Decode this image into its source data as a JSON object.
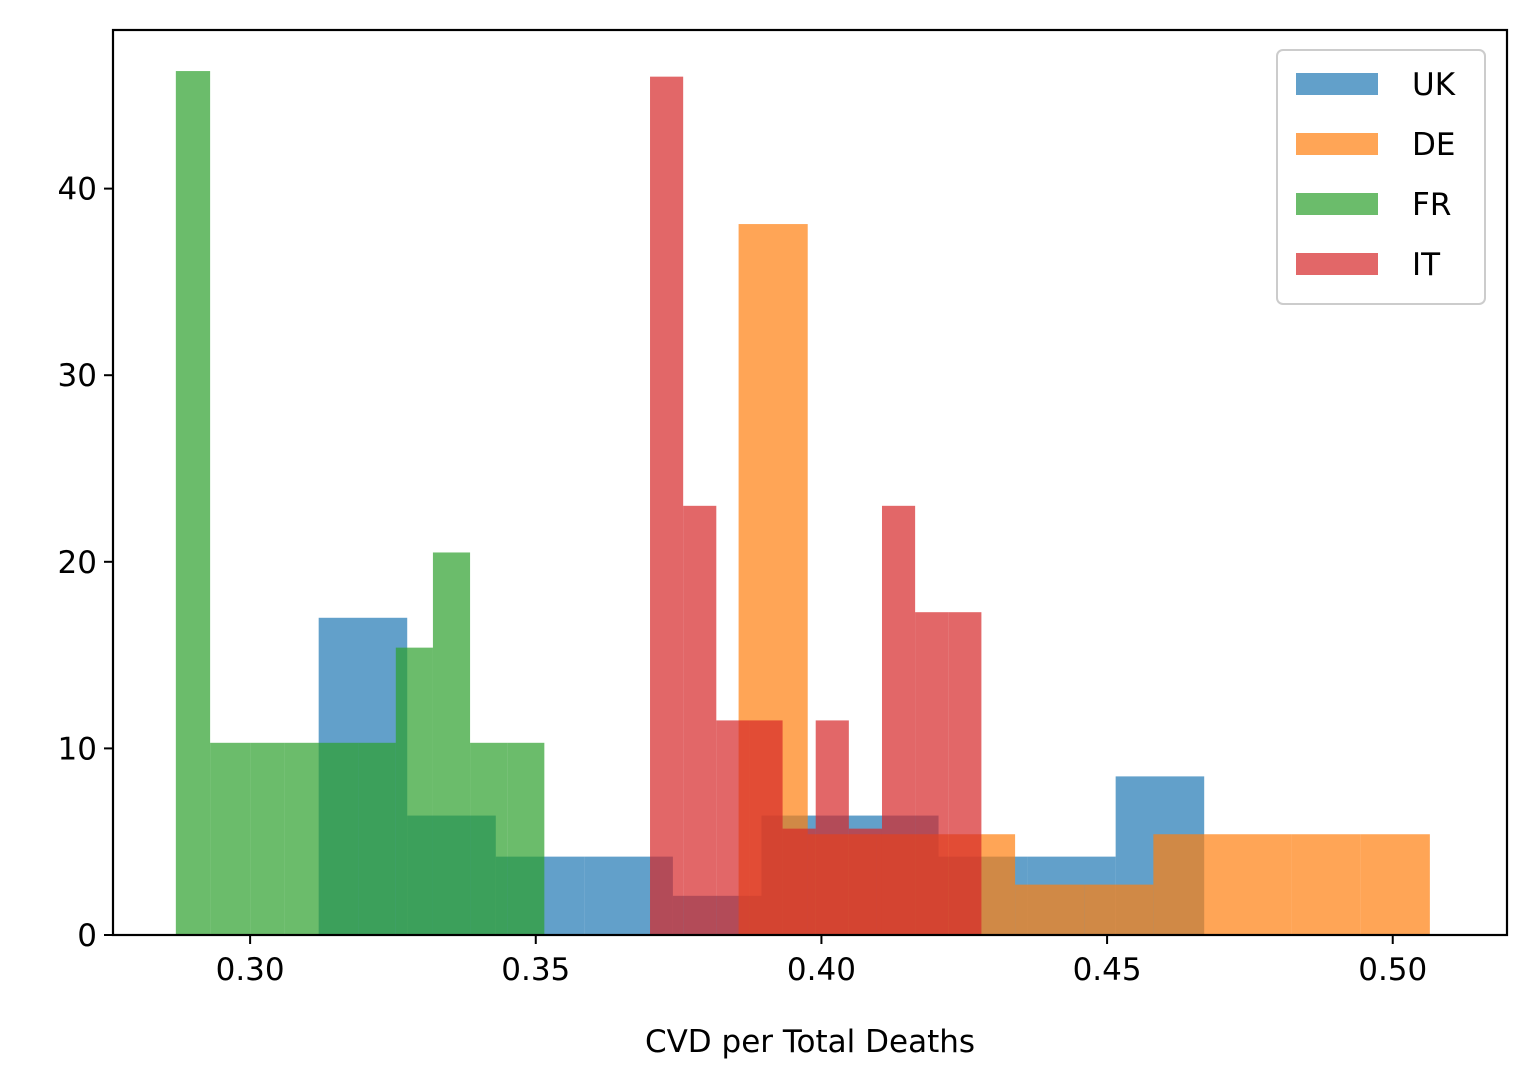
{
  "chart_data": {
    "type": "bar",
    "subtype": "overlapping-histogram",
    "title": "",
    "xlabel": "CVD per Total Deaths",
    "ylabel": "",
    "xlim": [
      0.276,
      0.52
    ],
    "ylim": [
      0,
      48.5
    ],
    "xticks": [
      {
        "value": 0.3,
        "label": "0.30"
      },
      {
        "value": 0.35,
        "label": "0.35"
      },
      {
        "value": 0.4,
        "label": "0.40"
      },
      {
        "value": 0.45,
        "label": "0.45"
      },
      {
        "value": 0.5,
        "label": "0.50"
      }
    ],
    "yticks": [
      {
        "value": 0,
        "label": "0"
      },
      {
        "value": 10,
        "label": "10"
      },
      {
        "value": 20,
        "label": "20"
      },
      {
        "value": 30,
        "label": "30"
      },
      {
        "value": 40,
        "label": "40"
      }
    ],
    "grid": false,
    "legend_position": "top-right",
    "opacity": 0.7,
    "series": [
      {
        "name": "UK",
        "color": "#1f77b4",
        "bins": [
          {
            "x0": 0.312,
            "x1": 0.3275,
            "value": 17.0
          },
          {
            "x0": 0.3275,
            "x1": 0.343,
            "value": 6.4
          },
          {
            "x0": 0.343,
            "x1": 0.3585,
            "value": 4.2
          },
          {
            "x0": 0.3585,
            "x1": 0.374,
            "value": 4.2
          },
          {
            "x0": 0.374,
            "x1": 0.3895,
            "value": 2.1
          },
          {
            "x0": 0.3895,
            "x1": 0.405,
            "value": 6.4
          },
          {
            "x0": 0.405,
            "x1": 0.4205,
            "value": 6.4
          },
          {
            "x0": 0.4205,
            "x1": 0.436,
            "value": 4.2
          },
          {
            "x0": 0.436,
            "x1": 0.4515,
            "value": 4.2
          },
          {
            "x0": 0.4515,
            "x1": 0.467,
            "value": 8.5
          }
        ]
      },
      {
        "name": "DE",
        "color": "#ff7f0e",
        "bins": [
          {
            "x0": 0.3855,
            "x1": 0.3976,
            "value": 38.1
          },
          {
            "x0": 0.3976,
            "x1": 0.4097,
            "value": 5.4
          },
          {
            "x0": 0.4097,
            "x1": 0.4218,
            "value": 5.4
          },
          {
            "x0": 0.4218,
            "x1": 0.4339,
            "value": 5.4
          },
          {
            "x0": 0.4339,
            "x1": 0.446,
            "value": 2.7
          },
          {
            "x0": 0.446,
            "x1": 0.4581,
            "value": 2.7
          },
          {
            "x0": 0.4581,
            "x1": 0.4702,
            "value": 5.4
          },
          {
            "x0": 0.4702,
            "x1": 0.4823,
            "value": 5.4
          },
          {
            "x0": 0.4823,
            "x1": 0.4944,
            "value": 5.4
          },
          {
            "x0": 0.4944,
            "x1": 0.5065,
            "value": 5.4
          }
        ]
      },
      {
        "name": "FR",
        "color": "#2ca02c",
        "bins": [
          {
            "x0": 0.287,
            "x1": 0.293,
            "value": 46.3
          },
          {
            "x0": 0.293,
            "x1": 0.3,
            "value": 10.3
          },
          {
            "x0": 0.3,
            "x1": 0.306,
            "value": 10.3
          },
          {
            "x0": 0.306,
            "x1": 0.3125,
            "value": 10.3
          },
          {
            "x0": 0.3125,
            "x1": 0.319,
            "value": 10.3
          },
          {
            "x0": 0.319,
            "x1": 0.3255,
            "value": 10.3
          },
          {
            "x0": 0.3255,
            "x1": 0.332,
            "value": 15.4
          },
          {
            "x0": 0.332,
            "x1": 0.3385,
            "value": 20.5
          },
          {
            "x0": 0.3385,
            "x1": 0.345,
            "value": 10.3
          },
          {
            "x0": 0.345,
            "x1": 0.3515,
            "value": 10.3
          }
        ]
      },
      {
        "name": "IT",
        "color": "#d62728",
        "bins": [
          {
            "x0": 0.37,
            "x1": 0.3758,
            "value": 46.0
          },
          {
            "x0": 0.3758,
            "x1": 0.3816,
            "value": 23.0
          },
          {
            "x0": 0.3816,
            "x1": 0.3874,
            "value": 11.5
          },
          {
            "x0": 0.3874,
            "x1": 0.3932,
            "value": 11.5
          },
          {
            "x0": 0.3932,
            "x1": 0.399,
            "value": 5.7
          },
          {
            "x0": 0.399,
            "x1": 0.4048,
            "value": 11.5
          },
          {
            "x0": 0.4048,
            "x1": 0.4106,
            "value": 5.7
          },
          {
            "x0": 0.4106,
            "x1": 0.4164,
            "value": 23.0
          },
          {
            "x0": 0.4164,
            "x1": 0.4222,
            "value": 17.3
          },
          {
            "x0": 0.4222,
            "x1": 0.428,
            "value": 17.3
          }
        ]
      }
    ]
  }
}
